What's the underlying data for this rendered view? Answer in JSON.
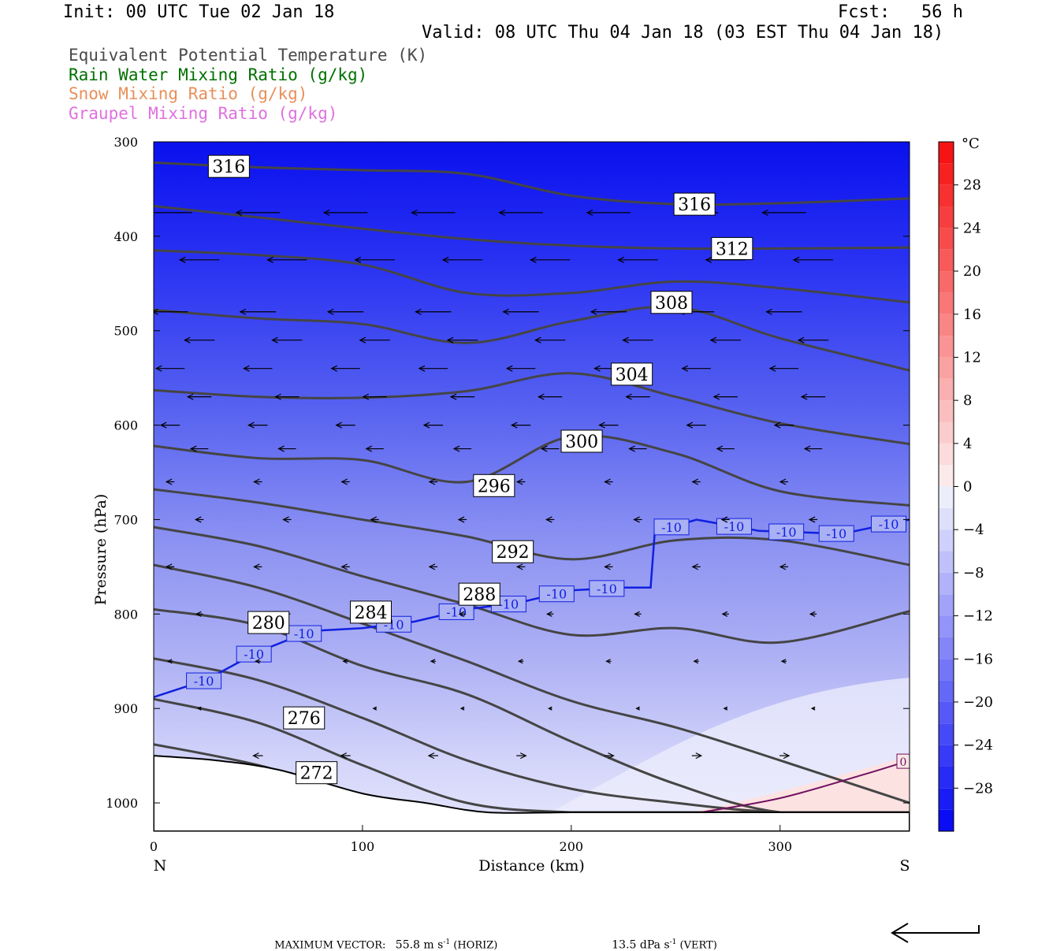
{
  "header": {
    "init": "Init: 00 UTC Tue 02 Jan 18",
    "fcst": "Fcst:   56 h",
    "valid": "Valid: 08 UTC Thu 04 Jan 18 (03 EST Thu 04 Jan 18)",
    "legend": [
      {
        "text": "Equivalent Potential Temperature (K)",
        "color": "#4a4a4a"
      },
      {
        "text": "Rain Water Mixing Ratio (g/kg)",
        "color": "#007000"
      },
      {
        "text": "Snow Mixing Ratio (g/kg)",
        "color": "#e8905a"
      },
      {
        "text": "Graupel Mixing Ratio (g/kg)",
        "color": "#e070e0"
      }
    ]
  },
  "chart_data": {
    "type": "cross-section",
    "xlabel": "Distance (km)",
    "ylabel": "Pressure (hPa)",
    "xlim": [
      0,
      362
    ],
    "ylim": [
      1030,
      300
    ],
    "xticks": [
      0,
      100,
      200,
      300
    ],
    "yticks": [
      300,
      400,
      500,
      600,
      700,
      800,
      900,
      1000
    ],
    "x_end_labels": {
      "left": "N",
      "right": "S"
    },
    "shading_field": "temperature (°C)",
    "colorbar": {
      "unit": "°C",
      "levels": [
        -32,
        -30,
        -28,
        -26,
        -24,
        -22,
        -20,
        -18,
        -16,
        -14,
        -12,
        -10,
        -8,
        -6,
        -4,
        -2,
        0,
        2,
        4,
        6,
        8,
        10,
        12,
        14,
        16,
        18,
        20,
        22,
        24,
        26,
        28,
        30,
        32
      ],
      "labels": [
        28,
        24,
        20,
        16,
        12,
        8,
        4,
        0,
        -4,
        -8,
        -12,
        -16,
        -20,
        -24,
        -28
      ]
    },
    "theta_e_contours": [
      {
        "label": "316",
        "x": [
          0,
          50,
          100,
          150,
          200,
          250,
          300,
          362
        ],
        "p": [
          322,
          327,
          330,
          334,
          357,
          366,
          365,
          360
        ],
        "lx": 36,
        "lp": 326
      },
      {
        "label": "316",
        "x": [
          0,
          50,
          100,
          150,
          200,
          250,
          300,
          362
        ],
        "p": [
          368,
          380,
          392,
          403,
          410,
          413,
          413,
          412
        ],
        "lx": 259,
        "lp": 366
      },
      {
        "label": "312",
        "x": [
          0,
          50,
          100,
          150,
          200,
          250,
          300,
          362
        ],
        "p": [
          415,
          420,
          430,
          460,
          460,
          448,
          455,
          470
        ],
        "lx": 277,
        "lp": 413
      },
      {
        "label": "308",
        "x": [
          0,
          50,
          100,
          150,
          200,
          250,
          300,
          362
        ],
        "p": [
          478,
          487,
          493,
          513,
          490,
          475,
          508,
          542
        ],
        "lx": 248,
        "lp": 470
      },
      {
        "label": "304",
        "x": [
          0,
          50,
          100,
          150,
          200,
          250,
          300,
          362
        ],
        "p": [
          563,
          570,
          571,
          564,
          545,
          570,
          598,
          620
        ],
        "lx": 229,
        "lp": 546
      },
      {
        "label": "300",
        "x": [
          0,
          50,
          100,
          150,
          200,
          250,
          300,
          362
        ],
        "p": [
          622,
          635,
          637,
          660,
          612,
          630,
          670,
          685
        ],
        "lx": 205,
        "lp": 617
      },
      {
        "label": "296",
        "x": [
          0,
          50,
          100,
          150,
          200,
          250,
          300,
          362
        ],
        "p": [
          668,
          682,
          700,
          718,
          742,
          722,
          722,
          748
        ],
        "lx": 163,
        "lp": 664
      },
      {
        "label": "292",
        "x": [
          0,
          50,
          100,
          150,
          200,
          250,
          300,
          362
        ],
        "p": [
          708,
          728,
          760,
          790,
          822,
          815,
          830,
          797
        ],
        "lx": 172,
        "lp": 734
      },
      {
        "label": "288",
        "x": [
          0,
          50,
          100,
          150,
          200,
          250,
          300,
          362
        ],
        "p": [
          748,
          772,
          810,
          850,
          892,
          920,
          955,
          1000
        ],
        "lx": 156,
        "lp": 779
      },
      {
        "label": "284",
        "x": [
          0,
          50,
          100,
          150,
          200,
          250,
          300,
          362
        ],
        "p": [
          795,
          812,
          855,
          885,
          935,
          980,
          1010,
          1010
        ],
        "lx": 104,
        "lp": 798
      },
      {
        "label": "280",
        "x": [
          0,
          50,
          100,
          150,
          200,
          250,
          300,
          362
        ],
        "p": [
          847,
          870,
          910,
          955,
          985,
          1000,
          1010,
          1010
        ],
        "lx": 55,
        "lp": 809
      },
      {
        "label": "276",
        "x": [
          0,
          50,
          100,
          150,
          200,
          250,
          300,
          362
        ],
        "p": [
          890,
          915,
          960,
          1000,
          1010,
          1010,
          1010,
          1010
        ],
        "lx": 72,
        "lp": 910
      },
      {
        "label": "272",
        "x": [
          0,
          50,
          100,
          150,
          200,
          250,
          300,
          362
        ],
        "p": [
          938,
          960,
          992,
          1010,
          1010,
          1010,
          1010,
          1010
        ],
        "lx": 78,
        "lp": 968
      }
    ],
    "isotherm_-10": {
      "label": "-10",
      "x": [
        0,
        25,
        50,
        75,
        100,
        125,
        150,
        175,
        200,
        225,
        238,
        240,
        260,
        290,
        330,
        362
      ],
      "p": [
        888,
        870,
        840,
        818,
        815,
        808,
        795,
        788,
        775,
        772,
        772,
        713,
        700,
        712,
        715,
        700
      ],
      "labels_at_x": [
        24,
        48,
        72,
        115,
        145,
        170,
        193,
        217,
        248,
        278,
        303,
        327,
        352
      ]
    },
    "isotherm_0": {
      "label": "0",
      "x": [
        262,
        300,
        340,
        362
      ],
      "p": [
        1010,
        995,
        970,
        955
      ]
    },
    "terrain": {
      "x": [
        0,
        30,
        60,
        100,
        130,
        160,
        200,
        230,
        260,
        300,
        340,
        362
      ],
      "p": [
        950,
        955,
        965,
        990,
        1000,
        1010,
        1010,
        1010,
        1010,
        1010,
        1010,
        1010
      ]
    },
    "footer": {
      "max_vector_label": "MAXIMUM VECTOR:",
      "horiz": "55.8 m s",
      "horiz_unit": "(HORIZ)",
      "vert": "13.5 dPa s",
      "vert_unit": "(VERT)"
    }
  }
}
